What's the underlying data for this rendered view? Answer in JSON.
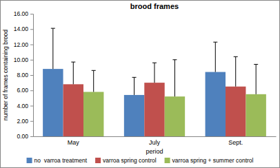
{
  "chart_data": {
    "type": "bar",
    "title": "brood frames",
    "x_label": "period",
    "y_label": "number of frames containing brood",
    "categories": [
      "May",
      "July",
      "Sept."
    ],
    "series": [
      {
        "name": "no  varroa treatment",
        "color": "#4f81bd",
        "values": [
          8.8,
          5.4,
          8.4
        ],
        "errors": [
          5.3,
          2.3,
          3.9
        ]
      },
      {
        "name": "varroa spring control",
        "color": "#c0504d",
        "values": [
          6.8,
          7.0,
          6.5
        ],
        "errors": [
          2.9,
          2.6,
          3.9
        ]
      },
      {
        "name": "varroa spring + summer control",
        "color": "#9bbb59",
        "values": [
          5.8,
          5.2,
          5.5
        ],
        "errors": [
          2.8,
          4.8,
          3.9
        ]
      }
    ],
    "ylim": [
      0,
      16
    ],
    "yticks": [
      {
        "value": 0,
        "label": "0.00"
      },
      {
        "value": 2,
        "label": "2.00"
      },
      {
        "value": 4,
        "label": "4.00"
      },
      {
        "value": 6,
        "label": "6.00"
      },
      {
        "value": 8,
        "label": "8.00"
      },
      {
        "value": 10,
        "label": "10.00"
      },
      {
        "value": 12,
        "label": "12.00"
      },
      {
        "value": 14,
        "label": "14.00"
      },
      {
        "value": 16,
        "label": "16.00"
      }
    ],
    "grid": false,
    "legend": "bottom"
  }
}
